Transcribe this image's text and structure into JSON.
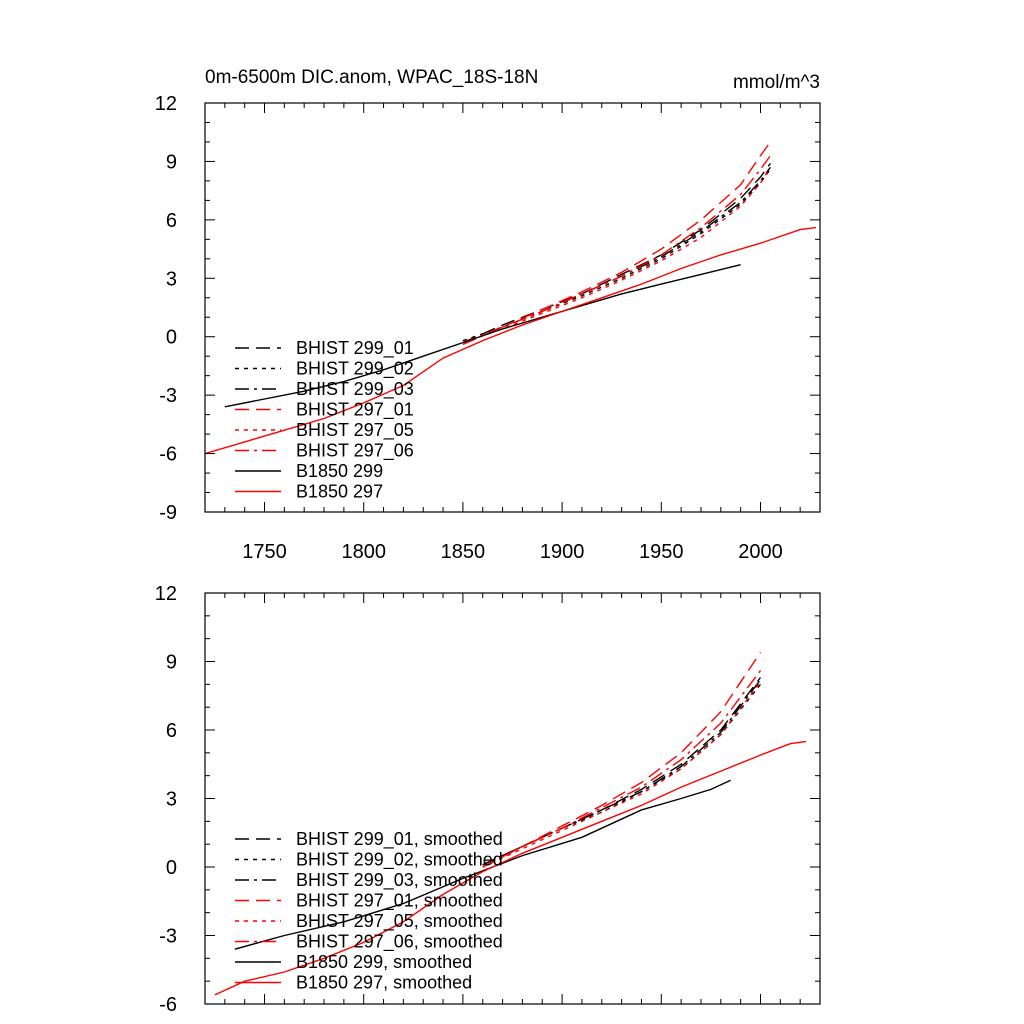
{
  "chart_data": [
    {
      "type": "line",
      "title": "0m-6500m DIC.anom, WPAC_18S-18N",
      "units": "mmol/m^3",
      "xlabel": "",
      "ylabel": "",
      "xlim": [
        1720,
        2030
      ],
      "ylim": [
        -9,
        12
      ],
      "xticks": [
        1750,
        1800,
        1850,
        1900,
        1950,
        2000
      ],
      "xtick_labels": [
        "1750",
        "1800",
        "1850",
        "1900",
        "1950",
        "2000"
      ],
      "yticks": [
        12,
        9,
        6,
        3,
        0,
        -3,
        -6,
        -9
      ],
      "ytick_labels": [
        "12",
        "9",
        "6",
        "3",
        "0",
        "-3",
        "-6",
        "-9"
      ],
      "grid": false,
      "legend_position": "left",
      "series": [
        {
          "name": "BHIST 299_01",
          "color": "#000000",
          "dash": "dash",
          "x": [
            1850,
            1870,
            1890,
            1910,
            1930,
            1950,
            1970,
            1990,
            2000,
            2005
          ],
          "y": [
            -0.3,
            0.6,
            1.4,
            2.2,
            3.2,
            4.2,
            5.5,
            7.1,
            8.2,
            8.9
          ]
        },
        {
          "name": "BHIST 299_02",
          "color": "#000000",
          "dash": "dot",
          "x": [
            1850,
            1870,
            1890,
            1910,
            1930,
            1950,
            1970,
            1990,
            2000,
            2005
          ],
          "y": [
            -0.2,
            0.5,
            1.3,
            2.1,
            3.0,
            4.0,
            5.3,
            6.8,
            7.9,
            8.6
          ]
        },
        {
          "name": "BHIST 299_03",
          "color": "#000000",
          "dash": "dashdot",
          "x": [
            1850,
            1870,
            1890,
            1910,
            1930,
            1950,
            1970,
            1990,
            2000,
            2005
          ],
          "y": [
            -0.3,
            0.5,
            1.3,
            2.2,
            3.1,
            4.1,
            5.4,
            6.9,
            8.0,
            8.7
          ]
        },
        {
          "name": "BHIST 297_01",
          "color": "#ff0000",
          "dash": "dash",
          "x": [
            1850,
            1870,
            1890,
            1910,
            1930,
            1950,
            1970,
            1990,
            2000,
            2005
          ],
          "y": [
            -0.4,
            0.5,
            1.4,
            2.3,
            3.3,
            4.5,
            6.0,
            7.8,
            9.3,
            10.0
          ]
        },
        {
          "name": "BHIST 297_05",
          "color": "#ff0000",
          "dash": "dot",
          "x": [
            1850,
            1870,
            1890,
            1910,
            1930,
            1950,
            1970,
            1990,
            2000,
            2005
          ],
          "y": [
            -0.3,
            0.4,
            1.2,
            2.0,
            2.9,
            3.9,
            5.1,
            6.7,
            7.9,
            8.7
          ]
        },
        {
          "name": "BHIST 297_06",
          "color": "#ff0000",
          "dash": "dashdot",
          "x": [
            1850,
            1870,
            1890,
            1910,
            1930,
            1950,
            1970,
            1990,
            2000,
            2005
          ],
          "y": [
            -0.3,
            0.5,
            1.3,
            2.2,
            3.1,
            4.2,
            5.6,
            7.3,
            8.6,
            9.3
          ]
        },
        {
          "name": "B1850 299",
          "color": "#000000",
          "dash": "solid",
          "x": [
            1730,
            1750,
            1770,
            1790,
            1810,
            1830,
            1850,
            1870,
            1890,
            1910,
            1930,
            1950,
            1970,
            1990
          ],
          "y": [
            -3.6,
            -3.2,
            -2.8,
            -2.3,
            -1.7,
            -1.0,
            -0.3,
            0.4,
            1.0,
            1.6,
            2.2,
            2.7,
            3.2,
            3.7
          ]
        },
        {
          "name": "B1850 297",
          "color": "#ff0000",
          "dash": "solid",
          "x": [
            1720,
            1740,
            1760,
            1780,
            1800,
            1820,
            1840,
            1860,
            1880,
            1900,
            1920,
            1940,
            1960,
            1980,
            2000,
            2020,
            2028
          ],
          "y": [
            -6.0,
            -5.4,
            -4.8,
            -4.2,
            -3.4,
            -2.5,
            -1.1,
            -0.2,
            0.6,
            1.3,
            2.0,
            2.7,
            3.5,
            4.2,
            4.8,
            5.5,
            5.6
          ]
        }
      ]
    },
    {
      "type": "line",
      "title": "",
      "xlim": [
        1720,
        2030
      ],
      "ylim": [
        -6,
        12
      ],
      "xticks": [
        1750,
        1800,
        1850,
        1900,
        1950,
        2000
      ],
      "xtick_labels": [],
      "yticks": [
        12,
        9,
        6,
        3,
        0,
        -3,
        -6
      ],
      "ytick_labels": [
        "12",
        "9",
        "6",
        "3",
        "0",
        "-3",
        "-6"
      ],
      "grid": false,
      "legend_position": "left",
      "series": [
        {
          "name": "BHIST 299_01, smoothed",
          "color": "#000000",
          "dash": "dash",
          "x": [
            1860,
            1880,
            1900,
            1920,
            1940,
            1960,
            1980,
            2000
          ],
          "y": [
            0.1,
            0.9,
            1.7,
            2.5,
            3.4,
            4.5,
            6.0,
            8.3
          ]
        },
        {
          "name": "BHIST 299_02, smoothed",
          "color": "#000000",
          "dash": "dot",
          "x": [
            1860,
            1880,
            1900,
            1920,
            1940,
            1960,
            1980,
            2000
          ],
          "y": [
            0.1,
            0.9,
            1.7,
            2.4,
            3.3,
            4.3,
            5.8,
            8.0
          ]
        },
        {
          "name": "BHIST 299_03, smoothed",
          "color": "#000000",
          "dash": "dashdot",
          "x": [
            1860,
            1880,
            1900,
            1920,
            1940,
            1960,
            1980,
            2000
          ],
          "y": [
            0.1,
            0.9,
            1.7,
            2.5,
            3.3,
            4.4,
            5.9,
            8.2
          ]
        },
        {
          "name": "BHIST 297_01, smoothed",
          "color": "#ff0000",
          "dash": "dash",
          "x": [
            1860,
            1880,
            1900,
            1920,
            1940,
            1960,
            1980,
            2000
          ],
          "y": [
            0.0,
            0.9,
            1.8,
            2.7,
            3.7,
            5.0,
            6.8,
            9.4
          ]
        },
        {
          "name": "BHIST 297_05, smoothed",
          "color": "#ff0000",
          "dash": "dot",
          "x": [
            1860,
            1880,
            1900,
            1920,
            1940,
            1960,
            1980,
            2000
          ],
          "y": [
            0.0,
            0.8,
            1.6,
            2.4,
            3.2,
            4.3,
            5.8,
            8.1
          ]
        },
        {
          "name": "BHIST 297_06, smoothed",
          "color": "#ff0000",
          "dash": "dashdot",
          "x": [
            1860,
            1880,
            1900,
            1920,
            1940,
            1960,
            1980,
            2000
          ],
          "y": [
            0.0,
            0.9,
            1.7,
            2.6,
            3.5,
            4.7,
            6.3,
            8.6
          ]
        },
        {
          "name": "B1850 299, smoothed",
          "color": "#000000",
          "dash": "solid",
          "x": [
            1735,
            1760,
            1790,
            1820,
            1850,
            1880,
            1910,
            1940,
            1960,
            1975,
            1985
          ],
          "y": [
            -3.6,
            -3.0,
            -2.4,
            -1.6,
            -0.5,
            0.5,
            1.3,
            2.5,
            3.0,
            3.4,
            3.8
          ]
        },
        {
          "name": "B1850 297, smoothed",
          "color": "#ff0000",
          "dash": "solid",
          "x": [
            1725,
            1740,
            1760,
            1780,
            1800,
            1820,
            1840,
            1860,
            1880,
            1900,
            1920,
            1940,
            1960,
            1980,
            2000,
            2015,
            2023
          ],
          "y": [
            -5.6,
            -5.0,
            -4.6,
            -4.0,
            -3.3,
            -2.4,
            -1.2,
            -0.2,
            0.6,
            1.3,
            2.0,
            2.7,
            3.5,
            4.2,
            4.9,
            5.4,
            5.5
          ]
        }
      ]
    }
  ]
}
